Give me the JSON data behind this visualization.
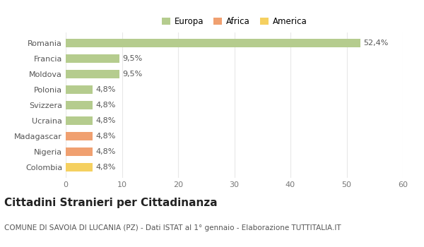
{
  "categories": [
    "Romania",
    "Francia",
    "Moldova",
    "Polonia",
    "Svizzera",
    "Ucraina",
    "Madagascar",
    "Nigeria",
    "Colombia"
  ],
  "values": [
    52.4,
    9.5,
    9.5,
    4.8,
    4.8,
    4.8,
    4.8,
    4.8,
    4.8
  ],
  "labels": [
    "52,4%",
    "9,5%",
    "9,5%",
    "4,8%",
    "4,8%",
    "4,8%",
    "4,8%",
    "4,8%",
    "4,8%"
  ],
  "colors": [
    "#b5cc8e",
    "#b5cc8e",
    "#b5cc8e",
    "#b5cc8e",
    "#b5cc8e",
    "#b5cc8e",
    "#f0a070",
    "#f0a070",
    "#f5d060"
  ],
  "legend": [
    {
      "label": "Europa",
      "color": "#b5cc8e"
    },
    {
      "label": "Africa",
      "color": "#f0a070"
    },
    {
      "label": "America",
      "color": "#f5d060"
    }
  ],
  "xlim": [
    0,
    60
  ],
  "xticks": [
    0,
    10,
    20,
    30,
    40,
    50,
    60
  ],
  "title": "Cittadini Stranieri per Cittadinanza",
  "subtitle": "COMUNE DI SAVOIA DI LUCANIA (PZ) - Dati ISTAT al 1° gennaio - Elaborazione TUTTITALIA.IT",
  "background_color": "#ffffff",
  "grid_color": "#e8e8e8",
  "bar_height": 0.55,
  "title_fontsize": 11,
  "subtitle_fontsize": 7.5,
  "label_fontsize": 8,
  "tick_fontsize": 8
}
